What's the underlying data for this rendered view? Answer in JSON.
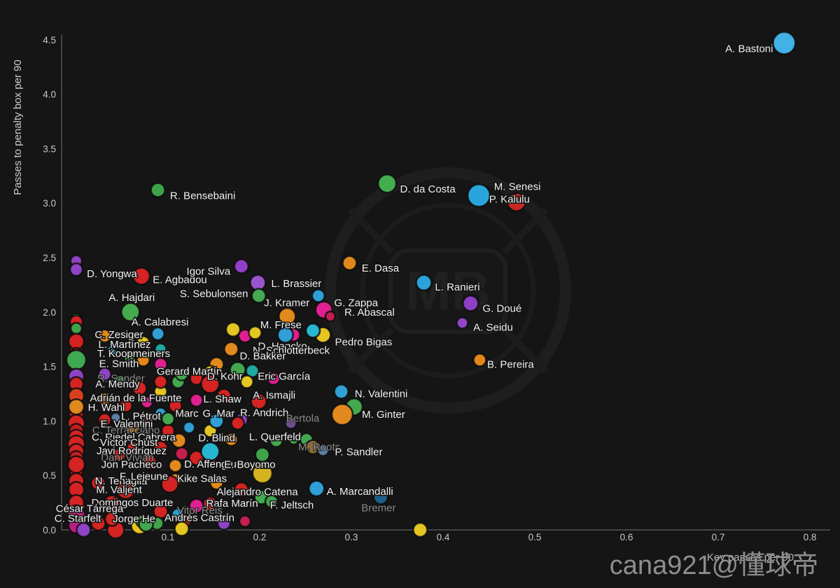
{
  "watermark": "cana921@懂球帝",
  "background_logo": {
    "text": "MB"
  },
  "chart_data": {
    "type": "scatter",
    "title": "",
    "xlabel": "Key passes per 90",
    "ylabel": "Passes to penalty box per 90",
    "xlim": [
      0,
      0.8
    ],
    "ylim": [
      0,
      4.5
    ],
    "x_ticks": [
      0.1,
      0.2,
      0.3,
      0.4,
      0.5,
      0.6,
      0.7,
      0.8
    ],
    "y_ticks": [
      0.0,
      0.5,
      1.0,
      1.5,
      2.0,
      2.5,
      3.0,
      3.5,
      4.0,
      4.5
    ],
    "grid": false,
    "legend": null,
    "label_color": "#f1f1f1",
    "faint_label_color": "#a9a9a9",
    "points": [
      {
        "label": "A. Bastoni",
        "x": 0.772,
        "y": 4.47,
        "r": 16,
        "color": "#41b1e6",
        "ox": -50,
        "oy": 8
      },
      {
        "label": "R. Bensebaini",
        "x": 0.089,
        "y": 3.12,
        "r": 10,
        "color": "#3fa34b",
        "ox": 64,
        "oy": 8
      },
      {
        "label": "D. da Costa",
        "x": 0.339,
        "y": 3.18,
        "r": 13,
        "color": "#44ad4e",
        "ox": 58,
        "oy": 8
      },
      {
        "label": "M. Senesi",
        "x": 0.439,
        "y": 3.07,
        "r": 16,
        "color": "#2aa5dc",
        "ox": 55,
        "oy": -13
      },
      {
        "label": "P. Kalulu",
        "x": 0.48,
        "y": 3.01,
        "r": 13,
        "color": "#c92723",
        "ox": -10,
        "oy": -4
      },
      {
        "label": "D. Yongwa",
        "x": 0.0,
        "y": 2.39,
        "r": 9,
        "color": "#8e44c4",
        "ox": 51,
        "oy": 6
      },
      {
        "label": "E. Agbadou",
        "x": 0.071,
        "y": 2.33,
        "r": 12,
        "color": "#d42323",
        "ox": 55,
        "oy": 5
      },
      {
        "label": "Igor Silva",
        "x": 0.18,
        "y": 2.42,
        "r": 10,
        "color": "#9040c8",
        "ox": -47,
        "oy": 7
      },
      {
        "label": "L. Brassier",
        "x": 0.198,
        "y": 2.27,
        "r": 11,
        "color": "#9a55cc",
        "ox": 55,
        "oy": 1
      },
      {
        "label": "S. Sebulonsen",
        "x": 0.199,
        "y": 2.15,
        "r": 10,
        "color": "#46a94f",
        "ox": -64,
        "oy": -3
      },
      {
        "label": "A. Hajdari",
        "x": 0.059,
        "y": 2.0,
        "r": 13,
        "color": "#45a94e",
        "ox": 2,
        "oy": -21
      },
      {
        "label": "A. Calabresi",
        "x": 0.089,
        "y": 1.8,
        "r": 9,
        "color": "#2f9fd6",
        "ox": 3,
        "oy": -17
      },
      {
        "label": "J. Kramer",
        "x": 0.264,
        "y": 2.15,
        "r": 9,
        "color": "#2f9fd6",
        "ox": -45,
        "oy": 10
      },
      {
        "label": "G. Zappa",
        "x": 0.27,
        "y": 2.02,
        "r": 12,
        "color": "#df2090",
        "ox": 46,
        "oy": -10
      },
      {
        "label": "R. Abascal",
        "x": 0.277,
        "y": 1.96,
        "r": 7,
        "color": "#c41f4e",
        "ox": 56,
        "oy": -6
      },
      {
        "label": "M. Frese",
        "x": 0.23,
        "y": 1.96,
        "r": 12,
        "color": "#e2891d",
        "ox": -9,
        "oy": 12
      },
      {
        "label": "E. Dasa",
        "x": 0.298,
        "y": 2.45,
        "r": 10,
        "color": "#e1871c",
        "ox": 44,
        "oy": 7
      },
      {
        "label": "L. Ranieri",
        "x": 0.379,
        "y": 2.27,
        "r": 11,
        "color": "#2ba3da",
        "ox": 48,
        "oy": 6
      },
      {
        "label": "G. Doué",
        "x": 0.43,
        "y": 2.08,
        "r": 11,
        "color": "#8e3fc6",
        "ox": 45,
        "oy": 7
      },
      {
        "label": "A. Seidu",
        "x": 0.421,
        "y": 1.9,
        "r": 8,
        "color": "#9144c6",
        "ox": 44,
        "oy": 6
      },
      {
        "label": "B. Pereira",
        "x": 0.44,
        "y": 1.56,
        "r": 9,
        "color": "#e1871c",
        "ox": 44,
        "oy": 6
      },
      {
        "label": "Pedro Bigas",
        "x": 0.269,
        "y": 1.79,
        "r": 11,
        "color": "#e4c522",
        "ox": 58,
        "oy": 10
      },
      {
        "label": "D. Hancko",
        "x": 0.228,
        "y": 1.79,
        "r": 11,
        "color": "#2f9fd6",
        "ox": -4,
        "oy": 16
      },
      {
        "label": "N. Schlotterbeck",
        "x": 0.258,
        "y": 1.83,
        "r": 10,
        "color": "#27b6cf",
        "ox": -31,
        "oy": 28
      },
      {
        "label": "D. Bakker",
        "x": 0.169,
        "y": 1.66,
        "r": 10,
        "color": "#e2891d",
        "ox": 45,
        "oy": 10
      },
      {
        "label": "C. Zesiger",
        "x": 0.0,
        "y": 1.85,
        "r": 8,
        "color": "#3fa34b",
        "ox": 61,
        "oy": 9
      },
      {
        "label": "L. Martínez",
        "x": 0.0,
        "y": 1.73,
        "r": 11,
        "color": "#d42323",
        "ox": 69,
        "oy": 4
      },
      {
        "label": "T. Koopmeiners",
        "x": 0.0,
        "y": 1.62,
        "r": 8,
        "color": "#a82020",
        "ox": 82,
        "oy": 0
      },
      {
        "label": "E. Smith",
        "x": 0.0,
        "y": 1.56,
        "r": 14,
        "color": "#3fa851",
        "ox": 61,
        "oy": 5
      },
      {
        "label": "R. Sander",
        "x": 0.0,
        "y": 1.41,
        "r": 11,
        "color": "#8e44c4",
        "ox": 64,
        "oy": 3,
        "faint": true
      },
      {
        "label": "A. Mendy",
        "x": 0.0,
        "y": 1.34,
        "r": 10,
        "color": "#d42323",
        "ox": 59,
        "oy": 0
      },
      {
        "label": "Gerard Martín",
        "x": 0.176,
        "y": 1.47,
        "r": 11,
        "color": "#44a94e",
        "ox": -69,
        "oy": 2
      },
      {
        "label": "D. Kohr",
        "x": 0.146,
        "y": 1.34,
        "r": 13,
        "color": "#d42323",
        "ox": 21,
        "oy": -11
      },
      {
        "label": "Eric García",
        "x": 0.186,
        "y": 1.36,
        "r": 9,
        "color": "#e4c522",
        "ox": 53,
        "oy": -8
      },
      {
        "label": "Adrián de la Fuente",
        "x": 0.0,
        "y": 1.23,
        "r": 11,
        "color": "#d8401d",
        "ox": 85,
        "oy": 3
      },
      {
        "label": "L. Shaw",
        "x": 0.131,
        "y": 1.19,
        "r": 9,
        "color": "#df2090",
        "ox": 37,
        "oy": -2
      },
      {
        "label": "A. Ismajli",
        "x": 0.199,
        "y": 1.18,
        "r": 11,
        "color": "#d42323",
        "ox": 22,
        "oy": -9
      },
      {
        "label": "H. Wahl",
        "x": 0.0,
        "y": 1.13,
        "r": 11,
        "color": "#e2891d",
        "ox": 43,
        "oy": 1
      },
      {
        "label": "L. Pétrot",
        "x": 0.043,
        "y": 1.03,
        "r": 7,
        "color": "#5c7fa3",
        "ox": 36,
        "oy": -2
      },
      {
        "label": "Marc",
        "x": 0.1,
        "y": 1.02,
        "r": 9,
        "color": "#44a94e",
        "ox": 27,
        "oy": -8
      },
      {
        "label": "G. Mar",
        "x": 0.153,
        "y": 1.0,
        "r": 10,
        "color": "#2f9fd6",
        "ox": 3,
        "oy": -11
      },
      {
        "label": "R. Andrich",
        "x": 0.176,
        "y": 0.98,
        "r": 9,
        "color": "#d42323",
        "ox": 38,
        "oy": -15
      },
      {
        "label": "Bertola",
        "x": 0.234,
        "y": 0.98,
        "r": 8,
        "color": "#6b4f8f",
        "ox": 17,
        "oy": -7,
        "faint": true
      },
      {
        "label": "E. Valentini",
        "x": 0.0,
        "y": 0.98,
        "r": 12,
        "color": "#d42323",
        "ox": 72,
        "oy": 1
      },
      {
        "label": "C. Terracciano",
        "x": 0.0,
        "y": 0.91,
        "r": 10,
        "color": "#c22020",
        "ox": 71,
        "oy": -1,
        "faint": true
      },
      {
        "label": "C. Riedel Cabrera",
        "x": 0.0,
        "y": 0.85,
        "r": 11,
        "color": "#d42323",
        "ox": 82,
        "oy": 0
      },
      {
        "label": "Víctor Chust",
        "x": 0.0,
        "y": 0.79,
        "r": 12,
        "color": "#d42323",
        "ox": 75,
        "oy": -2
      },
      {
        "label": "Javi Rodríguez",
        "x": 0.0,
        "y": 0.72,
        "r": 11,
        "color": "#d42323",
        "ox": 79,
        "oy": -1
      },
      {
        "label": "Dani Vivian",
        "x": 0.0,
        "y": 0.66,
        "r": 10,
        "color": "#c22020",
        "ox": 73,
        "oy": -1,
        "faint": true
      },
      {
        "label": "Jon Pacheco",
        "x": 0.0,
        "y": 0.6,
        "r": 12,
        "color": "#d42323",
        "ox": 79,
        "oy": 0
      },
      {
        "label": "D. Blind",
        "x": 0.112,
        "y": 0.82,
        "r": 10,
        "color": "#e2891d",
        "ox": 54,
        "oy": -4
      },
      {
        "label": "L. Querfeld",
        "x": 0.251,
        "y": 0.83,
        "r": 9,
        "color": "#44a94e",
        "ox": -45,
        "oy": -4
      },
      {
        "label": "D. Affengruber",
        "x": 0.146,
        "y": 0.72,
        "r": 13,
        "color": "#27b6cf",
        "ox": 11,
        "oy": 18
      },
      {
        "label": "E. Boyomo",
        "x": 0.203,
        "y": 0.69,
        "r": 10,
        "color": "#3fa34b",
        "ox": -18,
        "oy": 14
      },
      {
        "label": "M. Roots",
        "x": 0.258,
        "y": 0.76,
        "r": 10,
        "color": "#8a6b3a",
        "ox": 9,
        "oy": 0,
        "faint": true
      },
      {
        "label": "P. Sandler",
        "x": 0.269,
        "y": 0.73,
        "r": 8,
        "color": "#5c7fa3",
        "ox": 51,
        "oy": 2
      },
      {
        "label": "N. Valentini",
        "x": 0.289,
        "y": 1.27,
        "r": 10,
        "color": "#2f9fd6",
        "ox": 57,
        "oy": 3
      },
      {
        "label": "M. Ginter",
        "x": 0.29,
        "y": 1.06,
        "r": 15,
        "color": "#e2891d",
        "ox": 59,
        "oy": 0
      },
      {
        "label": "N. Tenaglia",
        "x": 0.0,
        "y": 0.45,
        "r": 11,
        "color": "#d42323",
        "ox": 64,
        "oy": 0
      },
      {
        "label": "F. Lejeune",
        "x": 0.108,
        "y": 0.46,
        "r": 9,
        "color": "#e2891d",
        "ox": -45,
        "oy": -5
      },
      {
        "label": "Kike Salas",
        "x": 0.102,
        "y": 0.42,
        "r": 12,
        "color": "#d42323",
        "ox": 46,
        "oy": -8
      },
      {
        "label": "M. Valjent",
        "x": 0.0,
        "y": 0.37,
        "r": 11,
        "color": "#d42323",
        "ox": 61,
        "oy": 0
      },
      {
        "label": "Alejandro Catena",
        "x": 0.202,
        "y": 0.3,
        "r": 10,
        "color": "#44a94e",
        "ox": -6,
        "oy": -8
      },
      {
        "label": "Rafa Marín",
        "x": 0.131,
        "y": 0.22,
        "r": 10,
        "color": "#df2090",
        "ox": 51,
        "oy": -4
      },
      {
        "label": "F. Jeltsch",
        "x": 0.213,
        "y": 0.26,
        "r": 9,
        "color": "#3fa34b",
        "ox": 29,
        "oy": 5
      },
      {
        "label": "A. Marcandalli",
        "x": 0.262,
        "y": 0.38,
        "r": 11,
        "color": "#2f9fd6",
        "ox": 62,
        "oy": 4
      },
      {
        "label": "Bremer",
        "x": 0.332,
        "y": 0.3,
        "r": 10,
        "color": "#1f5e8a",
        "ox": -3,
        "oy": 15,
        "faint": true
      },
      {
        "label": "Domingos Duarte",
        "x": 0.0,
        "y": 0.25,
        "r": 11,
        "color": "#d42323",
        "ox": 80,
        "oy": 0
      },
      {
        "label": "César Tárrega",
        "x": 0.0,
        "y": 0.15,
        "r": 12,
        "color": "#c21f7c",
        "ox": 19,
        "oy": -7
      },
      {
        "label": "C. Starfelt",
        "x": 0.039,
        "y": 0.1,
        "r": 10,
        "color": "#d42323",
        "ox": -49,
        "oy": -1
      },
      {
        "label": "Jorge He",
        "x": 0.076,
        "y": 0.05,
        "r": 10,
        "color": "#44a94e",
        "ox": -17,
        "oy": -8
      },
      {
        "label": "Andrés Castrín",
        "x": 0.184,
        "y": 0.08,
        "r": 8,
        "color": "#c41f4e",
        "ox": -65,
        "oy": -5
      },
      {
        "label": "Vitor Reis",
        "x": 0.111,
        "y": 0.14,
        "r": 9,
        "color": "#2f9fd6",
        "ox": 31,
        "oy": -6,
        "faint": true
      }
    ],
    "unlabeled_points": [
      [
        0.0,
        2.47,
        8,
        "#8e44c4"
      ],
      [
        0.0,
        1.94,
        7,
        "#3fa34b"
      ],
      [
        0.0,
        1.91,
        9,
        "#d42323"
      ],
      [
        0.0,
        1.78,
        8,
        "#a82020"
      ],
      [
        0.0,
        1.65,
        9,
        "#d42323"
      ],
      [
        0.0,
        1.46,
        9,
        "#d42323"
      ],
      [
        0.0,
        1.27,
        9,
        "#a82020"
      ],
      [
        0.0,
        1.06,
        10,
        "#d42323"
      ],
      [
        0.0,
        0.94,
        9,
        "#d42323"
      ],
      [
        0.0,
        0.82,
        10,
        "#a82020"
      ],
      [
        0.0,
        0.69,
        9,
        "#d42323"
      ],
      [
        0.0,
        0.55,
        10,
        "#d42323"
      ],
      [
        0.0,
        0.42,
        10,
        "#d42323"
      ],
      [
        0.0,
        0.29,
        9,
        "#d42323"
      ],
      [
        0.0,
        0.17,
        12,
        "#c21f7c"
      ],
      [
        0.0,
        0.04,
        11,
        "#b81e86"
      ],
      [
        0.024,
        0.06,
        10,
        "#d42323"
      ],
      [
        0.043,
        0.0,
        12,
        "#d42323"
      ],
      [
        0.008,
        0.0,
        10,
        "#8e44c4"
      ],
      [
        0.171,
        1.84,
        10,
        "#e4c522"
      ],
      [
        0.184,
        1.78,
        9,
        "#df2090"
      ],
      [
        0.195,
        1.81,
        9,
        "#e4c522"
      ],
      [
        0.237,
        1.79,
        9,
        "#df2090"
      ],
      [
        0.153,
        1.52,
        10,
        "#e2891d"
      ],
      [
        0.192,
        1.46,
        9,
        "#1fa8a0"
      ],
      [
        0.215,
        1.39,
        9,
        "#df2090"
      ],
      [
        0.111,
        1.36,
        9,
        "#44a94e"
      ],
      [
        0.092,
        1.27,
        9,
        "#e4c522"
      ],
      [
        0.161,
        1.23,
        10,
        "#d42323"
      ],
      [
        0.18,
        1.01,
        9,
        "#8e44c4"
      ],
      [
        0.123,
        0.94,
        8,
        "#2f9fd6"
      ],
      [
        0.146,
        0.91,
        9,
        "#e4c522"
      ],
      [
        0.169,
        0.83,
        9,
        "#e2891d"
      ],
      [
        0.218,
        0.82,
        9,
        "#44a94e"
      ],
      [
        0.237,
        0.83,
        7,
        "#3fa34b"
      ],
      [
        0.203,
        0.52,
        14,
        "#d4b31e"
      ],
      [
        0.153,
        0.43,
        9,
        "#e2891d"
      ],
      [
        0.18,
        0.37,
        10,
        "#d42323"
      ],
      [
        0.146,
        0.24,
        10,
        "#d42323"
      ],
      [
        0.092,
        0.17,
        10,
        "#d42323"
      ],
      [
        0.118,
        0.08,
        9,
        "#a82020"
      ],
      [
        0.069,
        0.04,
        12,
        "#e4c522"
      ],
      [
        0.115,
        0.01,
        10,
        "#e4c522"
      ],
      [
        0.072,
        0.08,
        9,
        "#44a94e"
      ],
      [
        0.088,
        0.06,
        9,
        "#3fa34b"
      ],
      [
        0.161,
        0.06,
        9,
        "#8e44c4"
      ],
      [
        0.375,
        0.0,
        10,
        "#e4c522"
      ],
      [
        0.054,
        0.37,
        13,
        "#d42323"
      ],
      [
        0.039,
        0.24,
        12,
        "#d42323"
      ],
      [
        0.024,
        0.43,
        10,
        "#d42323"
      ],
      [
        0.08,
        0.62,
        10,
        "#d42323"
      ],
      [
        0.108,
        0.59,
        9,
        "#e2891d"
      ],
      [
        0.131,
        0.66,
        10,
        "#d42323"
      ],
      [
        0.146,
        0.62,
        9,
        "#a82020"
      ],
      [
        0.092,
        0.75,
        10,
        "#d42323"
      ],
      [
        0.115,
        0.7,
        9,
        "#c41f4e"
      ],
      [
        0.1,
        0.91,
        9,
        "#d42323"
      ],
      [
        0.077,
        1.01,
        9,
        "#d42323"
      ],
      [
        0.062,
        0.94,
        9,
        "#e2891d"
      ],
      [
        0.031,
        1.01,
        9,
        "#d42323"
      ],
      [
        0.092,
        1.07,
        8,
        "#2f9fd6"
      ],
      [
        0.108,
        1.14,
        9,
        "#d42323"
      ],
      [
        0.077,
        1.17,
        8,
        "#df2090"
      ],
      [
        0.054,
        1.14,
        9,
        "#d42323"
      ],
      [
        0.031,
        1.2,
        9,
        "#e2891d"
      ],
      [
        0.069,
        1.3,
        10,
        "#d42323"
      ],
      [
        0.092,
        1.36,
        9,
        "#d42323"
      ],
      [
        0.047,
        1.36,
        9,
        "#44a94e"
      ],
      [
        0.031,
        1.43,
        9,
        "#8e44c4"
      ],
      [
        0.115,
        1.43,
        9,
        "#44a94e"
      ],
      [
        0.131,
        1.39,
        9,
        "#d42323"
      ],
      [
        0.146,
        1.45,
        9,
        "#e4c522"
      ],
      [
        0.092,
        1.52,
        9,
        "#df2090"
      ],
      [
        0.073,
        1.56,
        9,
        "#e2891d"
      ],
      [
        0.058,
        1.59,
        8,
        "#44a94e"
      ],
      [
        0.039,
        1.65,
        7,
        "#2f9fd6"
      ],
      [
        0.073,
        1.72,
        9,
        "#e4c522"
      ],
      [
        0.092,
        1.66,
        8,
        "#1fa8a0"
      ],
      [
        0.031,
        1.78,
        9,
        "#e2891d"
      ],
      [
        0.047,
        0.69,
        9,
        "#d42323"
      ],
      [
        0.062,
        0.75,
        9,
        "#d42323"
      ],
      [
        0.303,
        1.13,
        12,
        "#44a94e"
      ]
    ]
  }
}
